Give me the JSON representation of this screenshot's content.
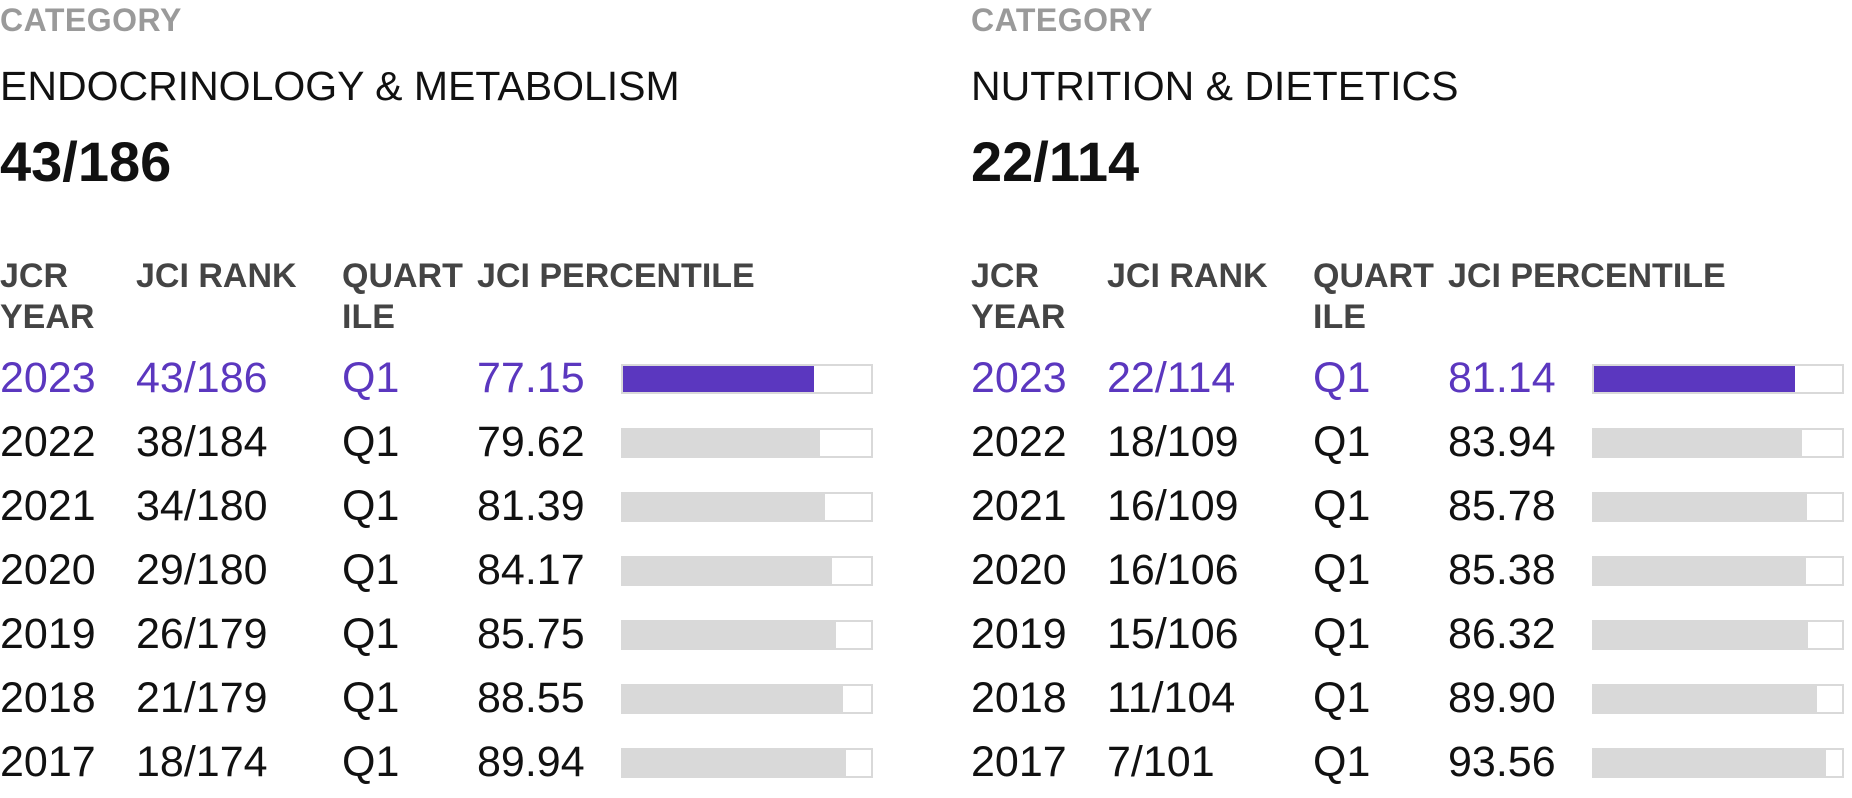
{
  "panels": [
    {
      "category_label": "CATEGORY",
      "category_name": "ENDOCRINOLOGY & METABOLISM",
      "category_rank": "43/186",
      "headers": {
        "year": "JCR YEAR",
        "rank": "JCI RANK",
        "quartile": "QUART ILE",
        "percentile": "JCI PERCENTILE"
      },
      "rows": [
        {
          "year": "2023",
          "rank": "43/186",
          "quartile": "Q1",
          "percentile": "77.15",
          "current": true
        },
        {
          "year": "2022",
          "rank": "38/184",
          "quartile": "Q1",
          "percentile": "79.62",
          "current": false
        },
        {
          "year": "2021",
          "rank": "34/180",
          "quartile": "Q1",
          "percentile": "81.39",
          "current": false
        },
        {
          "year": "2020",
          "rank": "29/180",
          "quartile": "Q1",
          "percentile": "84.17",
          "current": false
        },
        {
          "year": "2019",
          "rank": "26/179",
          "quartile": "Q1",
          "percentile": "85.75",
          "current": false
        },
        {
          "year": "2018",
          "rank": "21/179",
          "quartile": "Q1",
          "percentile": "88.55",
          "current": false
        },
        {
          "year": "2017",
          "rank": "18/174",
          "quartile": "Q1",
          "percentile": "89.94",
          "current": false
        }
      ]
    },
    {
      "category_label": "CATEGORY",
      "category_name": "NUTRITION & DIETETICS",
      "category_rank": "22/114",
      "headers": {
        "year": "JCR YEAR",
        "rank": "JCI RANK",
        "quartile": "QUART ILE",
        "percentile": "JCI PERCENTILE"
      },
      "rows": [
        {
          "year": "2023",
          "rank": "22/114",
          "quartile": "Q1",
          "percentile": "81.14",
          "current": true
        },
        {
          "year": "2022",
          "rank": "18/109",
          "quartile": "Q1",
          "percentile": "83.94",
          "current": false
        },
        {
          "year": "2021",
          "rank": "16/109",
          "quartile": "Q1",
          "percentile": "85.78",
          "current": false
        },
        {
          "year": "2020",
          "rank": "16/106",
          "quartile": "Q1",
          "percentile": "85.38",
          "current": false
        },
        {
          "year": "2019",
          "rank": "15/106",
          "quartile": "Q1",
          "percentile": "86.32",
          "current": false
        },
        {
          "year": "2018",
          "rank": "11/104",
          "quartile": "Q1",
          "percentile": "89.90",
          "current": false
        },
        {
          "year": "2017",
          "rank": "7/101",
          "quartile": "Q1",
          "percentile": "93.56",
          "current": false
        }
      ]
    }
  ],
  "colors": {
    "accent": "#5b37bf",
    "bar_track": "#d9d9d9",
    "label_gray": "#9a9a9a",
    "header_gray": "#444444"
  }
}
